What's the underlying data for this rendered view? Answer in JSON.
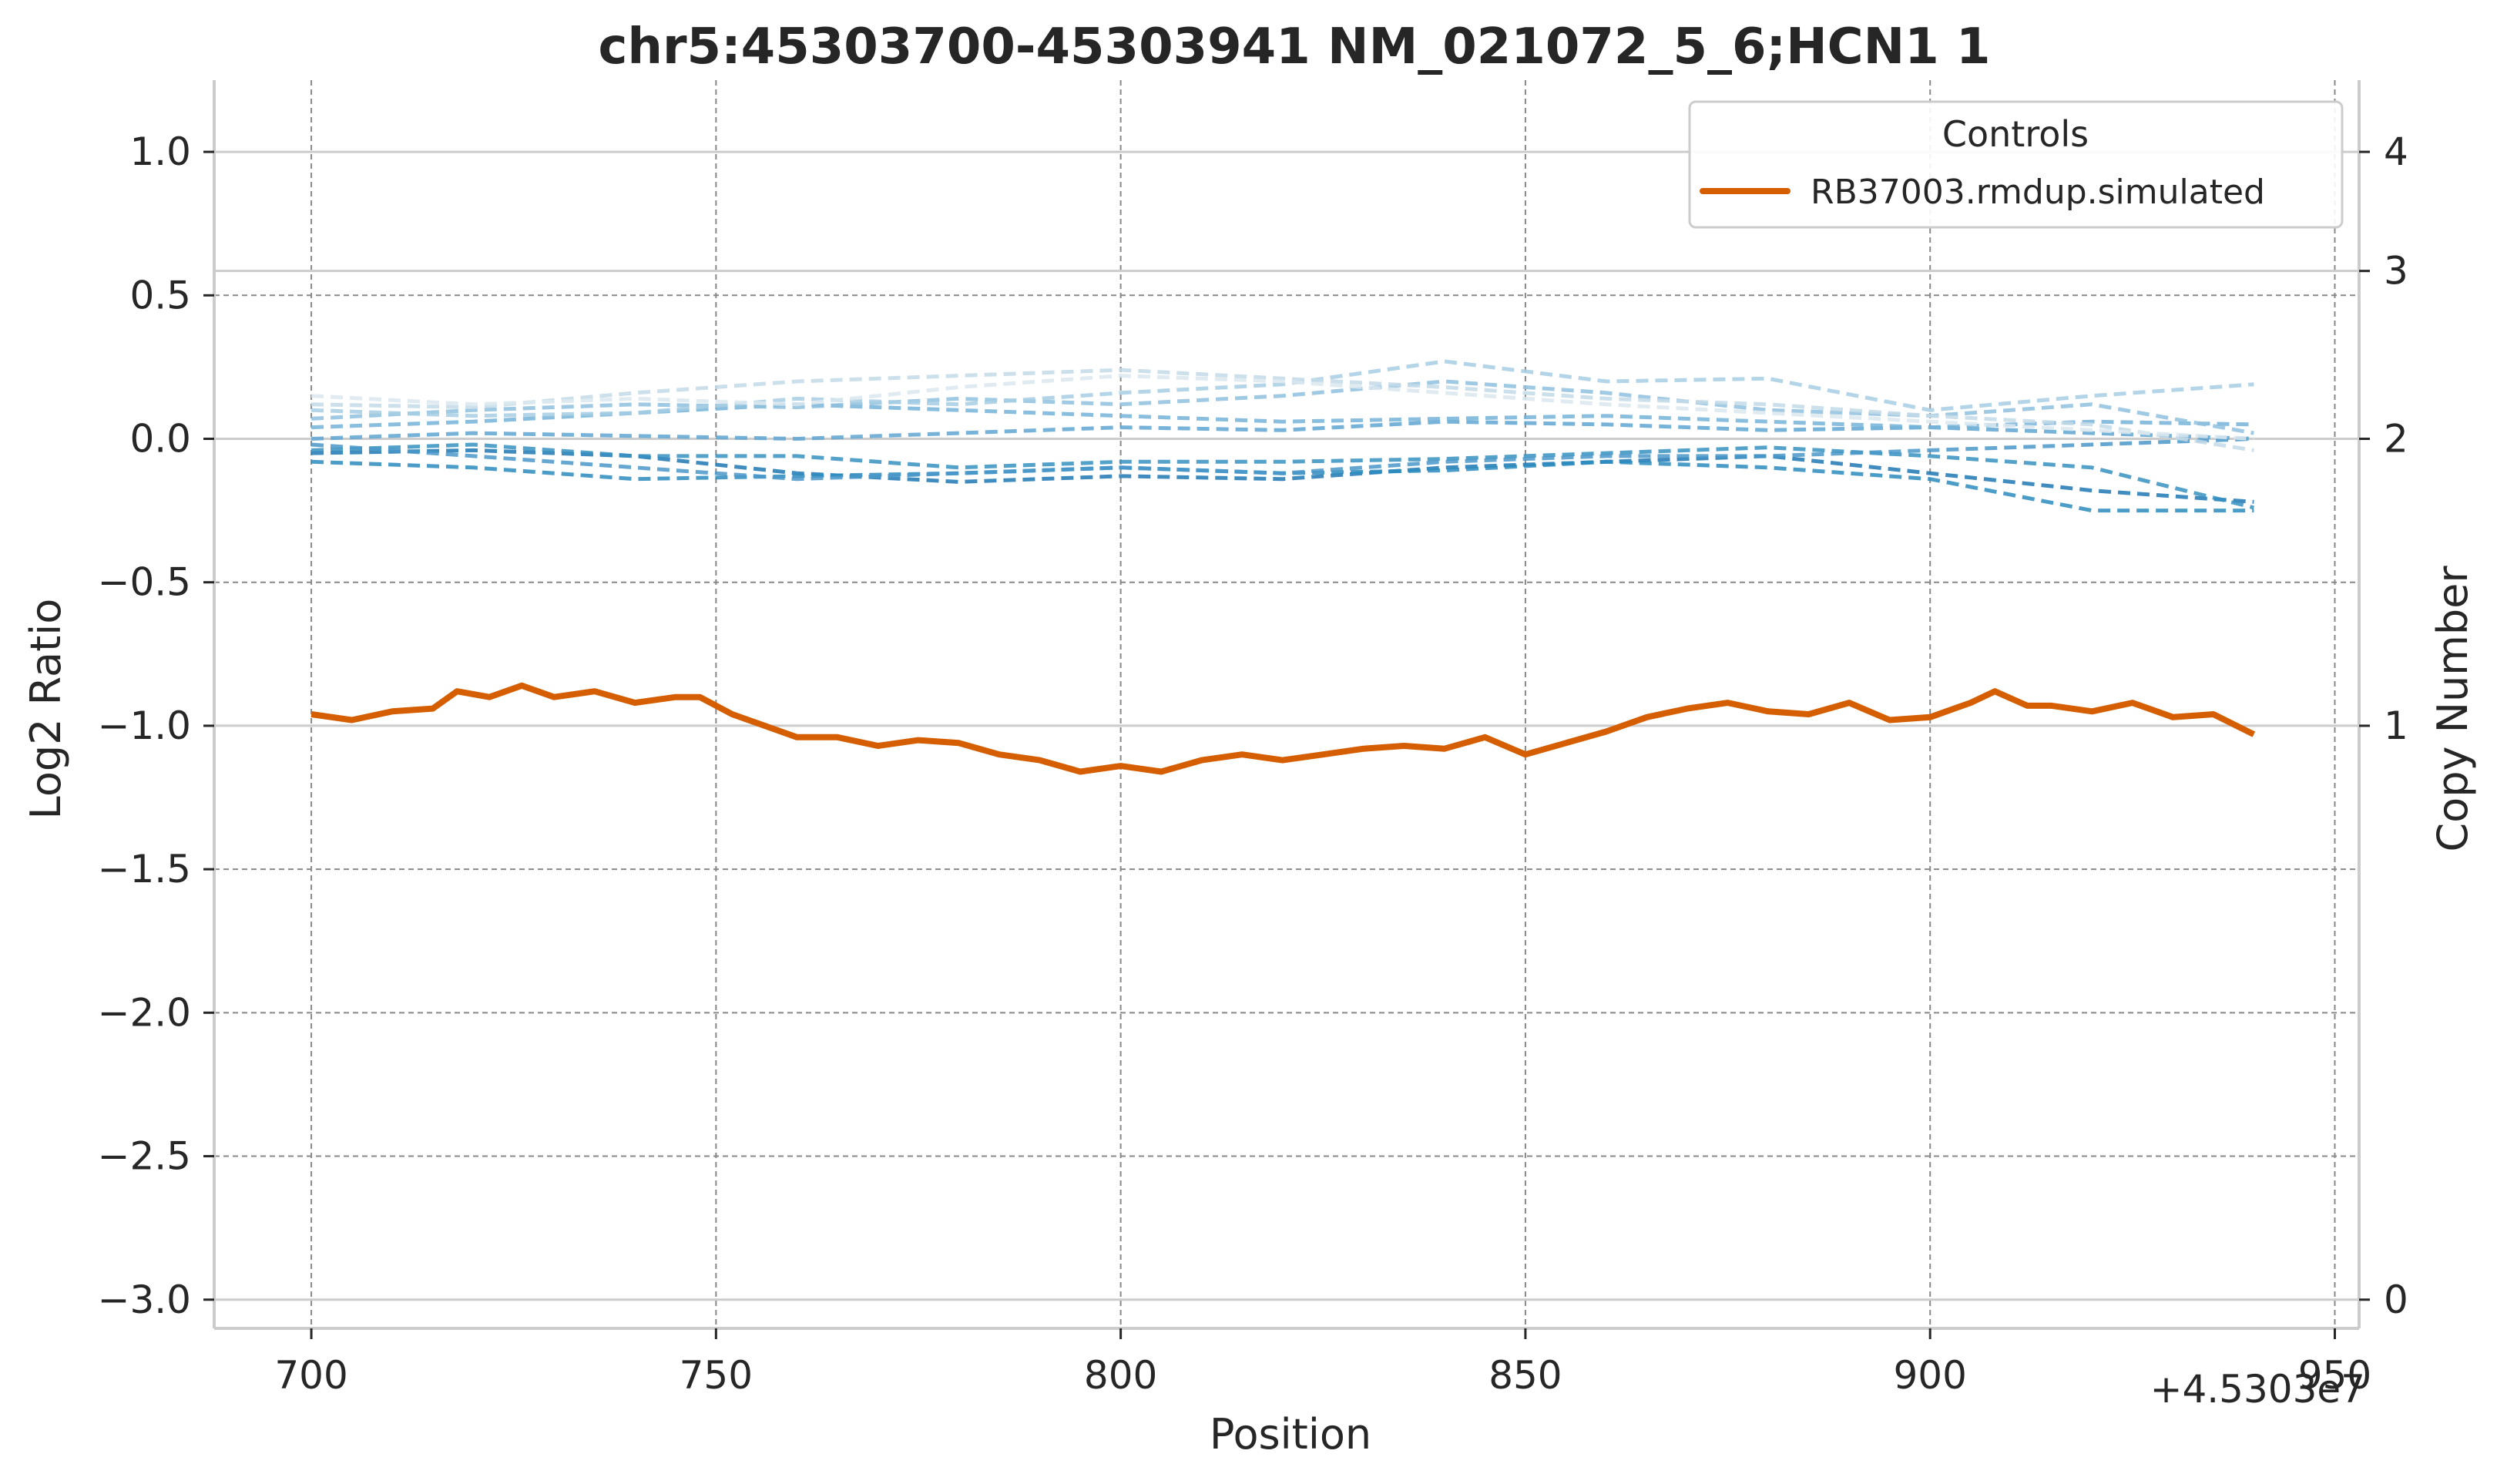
{
  "chart_data": {
    "type": "line",
    "title": "chr5:45303700-45303941 NM_021072_5_6;HCN1 1",
    "xlabel": "Position",
    "ylabel": "Log2 Ratio",
    "y2label": "Copy Number",
    "x_offset_label": "+4.5303e7",
    "xlim": [
      688,
      953
    ],
    "ylim": [
      -3.1,
      1.25
    ],
    "x_ticks": [
      700,
      750,
      800,
      850,
      900,
      950
    ],
    "x_tick_labels": [
      "700",
      "750",
      "800",
      "850",
      "900",
      "950"
    ],
    "y_ticks": [
      1.0,
      0.5,
      0.0,
      -0.5,
      -1.0,
      -1.5,
      -2.0,
      -2.5,
      -3.0
    ],
    "y_tick_labels": [
      "1.0",
      "0.5",
      "0.0",
      "−0.5",
      "−1.0",
      "−1.5",
      "−2.0",
      "−2.5",
      "−3.0"
    ],
    "y2_ticks": [
      {
        "label": "4",
        "log2": 1.0
      },
      {
        "label": "3",
        "log2": 0.585
      },
      {
        "label": "2",
        "log2": 0.0
      },
      {
        "label": "1",
        "log2": -1.0
      },
      {
        "label": "0",
        "log2": -3.0
      }
    ],
    "grid": true,
    "legend": {
      "title": "Controls",
      "position": "top-right"
    },
    "colors": {
      "sample": "#d55e00",
      "controls": [
        "#1f78b4",
        "#2b8cbe",
        "#3690c0",
        "#4a98c9",
        "#5fa6d1",
        "#74b3d8",
        "#8fc1de",
        "#a6cee3",
        "#c3dbe8",
        "#dbe7ef"
      ],
      "grid_dashed": "#888888",
      "grid_solid": "#cccccc",
      "spine": "#cccccc"
    },
    "series": [
      {
        "name": "RB37003.rmdup.simulated",
        "x": [
          700,
          705,
          710,
          715,
          718,
          722,
          726,
          730,
          735,
          740,
          745,
          748,
          752,
          756,
          760,
          765,
          770,
          775,
          780,
          785,
          790,
          795,
          800,
          805,
          810,
          815,
          820,
          825,
          830,
          835,
          840,
          845,
          850,
          855,
          860,
          865,
          870,
          875,
          880,
          885,
          890,
          895,
          900,
          905,
          908,
          912,
          915,
          920,
          925,
          930,
          935,
          940
        ],
        "y": [
          -0.96,
          -0.98,
          -0.95,
          -0.94,
          -0.88,
          -0.9,
          -0.86,
          -0.9,
          -0.88,
          -0.92,
          -0.9,
          -0.9,
          -0.96,
          -1.0,
          -1.04,
          -1.04,
          -1.07,
          -1.05,
          -1.06,
          -1.1,
          -1.12,
          -1.16,
          -1.14,
          -1.16,
          -1.12,
          -1.1,
          -1.12,
          -1.1,
          -1.08,
          -1.07,
          -1.08,
          -1.04,
          -1.1,
          -1.06,
          -1.02,
          -0.97,
          -0.94,
          -0.92,
          -0.95,
          -0.96,
          -0.92,
          -0.98,
          -0.97,
          -0.92,
          -0.88,
          -0.93,
          -0.93,
          -0.95,
          -0.92,
          -0.97,
          -0.96,
          -1.03
        ]
      }
    ],
    "control_series": [
      {
        "x": [
          700,
          720,
          740,
          760,
          780,
          800,
          820,
          840,
          860,
          880,
          900,
          920,
          940
        ],
        "y": [
          -0.05,
          -0.04,
          -0.06,
          -0.12,
          -0.15,
          -0.13,
          -0.14,
          -0.1,
          -0.08,
          -0.06,
          -0.12,
          -0.18,
          -0.22
        ]
      },
      {
        "x": [
          700,
          720,
          740,
          760,
          780,
          800,
          820,
          840,
          860,
          880,
          900,
          920,
          940
        ],
        "y": [
          -0.08,
          -0.1,
          -0.14,
          -0.13,
          -0.12,
          -0.1,
          -0.12,
          -0.11,
          -0.08,
          -0.1,
          -0.14,
          -0.25,
          -0.25
        ]
      },
      {
        "x": [
          700,
          720,
          740,
          760,
          780,
          800,
          820,
          840,
          860,
          880,
          900,
          920,
          940
        ],
        "y": [
          -0.04,
          -0.02,
          -0.06,
          -0.06,
          -0.1,
          -0.08,
          -0.08,
          -0.07,
          -0.05,
          -0.03,
          -0.06,
          -0.1,
          -0.24
        ]
      },
      {
        "x": [
          700,
          720,
          740,
          760,
          780,
          800,
          820,
          840,
          860,
          880,
          900,
          920,
          940
        ],
        "y": [
          -0.02,
          -0.06,
          -0.1,
          -0.14,
          -0.12,
          -0.1,
          -0.12,
          -0.08,
          -0.06,
          -0.06,
          -0.04,
          -0.02,
          0.0
        ]
      },
      {
        "x": [
          700,
          720,
          740,
          760,
          780,
          800,
          820,
          840,
          860,
          880,
          900,
          920,
          940
        ],
        "y": [
          0.0,
          0.02,
          0.01,
          0.0,
          0.02,
          0.04,
          0.03,
          0.06,
          0.05,
          0.03,
          0.04,
          0.02,
          0.0
        ]
      },
      {
        "x": [
          700,
          720,
          740,
          760,
          780,
          800,
          820,
          840,
          860,
          880,
          900,
          920,
          940
        ],
        "y": [
          0.04,
          0.06,
          0.09,
          0.12,
          0.1,
          0.08,
          0.06,
          0.07,
          0.08,
          0.06,
          0.04,
          0.06,
          0.05
        ]
      },
      {
        "x": [
          700,
          720,
          740,
          760,
          780,
          800,
          820,
          840,
          860,
          880,
          900,
          920,
          940
        ],
        "y": [
          0.07,
          0.1,
          0.12,
          0.11,
          0.14,
          0.12,
          0.15,
          0.2,
          0.16,
          0.1,
          0.08,
          0.12,
          0.02
        ]
      },
      {
        "x": [
          700,
          720,
          740,
          760,
          780,
          800,
          820,
          840,
          860,
          880,
          900,
          920,
          940
        ],
        "y": [
          0.1,
          0.08,
          0.09,
          0.14,
          0.12,
          0.16,
          0.19,
          0.27,
          0.2,
          0.21,
          0.1,
          0.15,
          0.19
        ]
      },
      {
        "x": [
          700,
          720,
          740,
          760,
          780,
          800,
          820,
          840,
          860,
          880,
          900,
          920,
          940
        ],
        "y": [
          0.12,
          0.11,
          0.16,
          0.2,
          0.22,
          0.24,
          0.21,
          0.18,
          0.14,
          0.12,
          0.08,
          0.05,
          -0.04
        ]
      },
      {
        "x": [
          700,
          720,
          740,
          760,
          780,
          800,
          820,
          840,
          860,
          880,
          900,
          920,
          940
        ],
        "y": [
          0.15,
          0.12,
          0.14,
          0.12,
          0.18,
          0.22,
          0.2,
          0.16,
          0.12,
          0.09,
          0.06,
          0.03,
          0.0
        ]
      }
    ]
  }
}
